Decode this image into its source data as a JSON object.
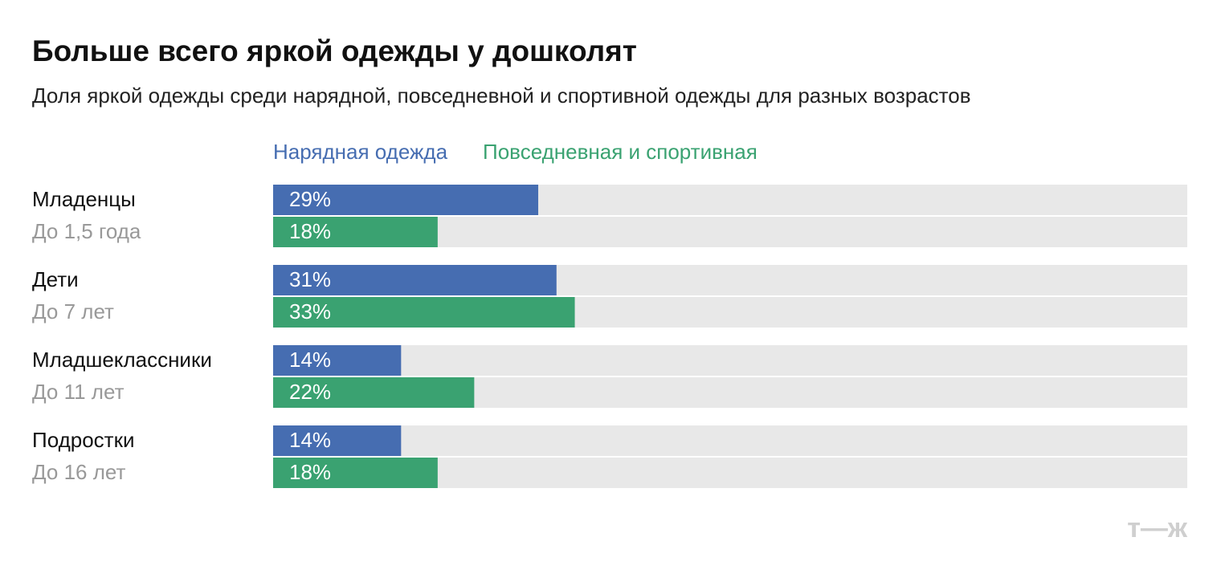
{
  "chart_data": {
    "type": "hbar",
    "title": "Больше всего яркой одежды у дошколят",
    "subtitle": "Доля яркой одежды среди нарядной, повседневной и спортивной одежды для разных возрастов",
    "categories": [
      "Младенцы",
      "Дети",
      "Младшеклассники",
      "Подростки"
    ],
    "category_sublabels": [
      "До 1,5 года",
      "До 7 лет",
      "До 11 лет",
      "До 16 лет"
    ],
    "series": [
      {
        "name": "Нарядная одежда",
        "color": "#466db1",
        "values": [
          29,
          31,
          14,
          14
        ],
        "value_labels": [
          "29%",
          "31%",
          "14%",
          "14%"
        ]
      },
      {
        "name": "Повседневная и спортивная",
        "color": "#3aa271",
        "values": [
          18,
          33,
          22,
          18
        ],
        "value_labels": [
          "18%",
          "33%",
          "22%",
          "18%"
        ]
      }
    ],
    "xlim": [
      0,
      100
    ],
    "track_color": "#e8e8e8",
    "logo": "т—ж"
  }
}
